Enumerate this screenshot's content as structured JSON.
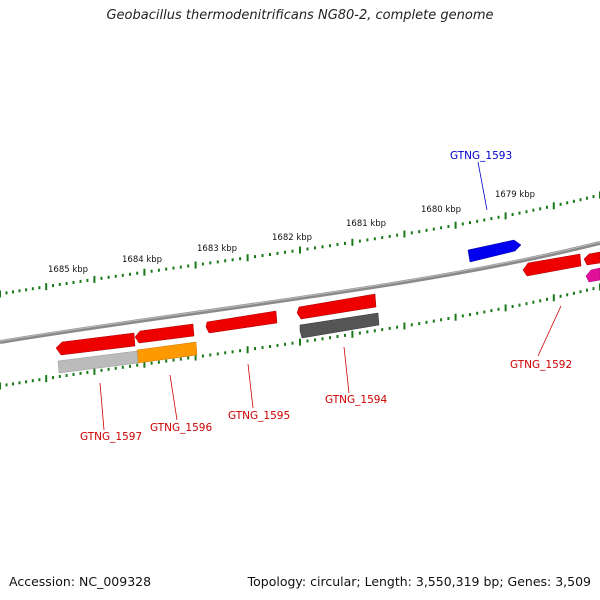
{
  "title": "Geobacillus thermodenitrificans NG80-2, complete genome",
  "accession_text": "Accession: NC_009328",
  "topology_text": "Topology: circular; Length: 3,550,319 bp; Genes: 3,509",
  "scale_labels": [
    "1685 kbp",
    "1684 kbp",
    "1683 kbp",
    "1682 kbp",
    "1681 kbp",
    "1680 kbp",
    "1679 kbp"
  ],
  "genes": [
    {
      "id": "GTNG_1593",
      "strand": "+",
      "color": "#0000ee"
    },
    {
      "id": "GTNG_1592",
      "strand": "-",
      "color": "#ee0000"
    },
    {
      "id": "GTNG_1594",
      "strand": "-",
      "color": "#555555"
    },
    {
      "id": "GTNG_1595",
      "strand": "+",
      "color": "#ee0000"
    },
    {
      "id": "GTNG_1596",
      "strand": "-",
      "color": "#ff9900"
    },
    {
      "id": "GTNG_1597",
      "strand": "-",
      "color": "#bbbbbb"
    }
  ],
  "colors": {
    "backbone": "#808080",
    "scale_ticks": "#1a7a1a",
    "forward_label": "#0000cc",
    "reverse_label": "#cc0000",
    "unlabeled_forward_gene": "#ee0000",
    "unlabeled_reverse_gene": "#ee0000",
    "edge_gene": "#e0109a"
  }
}
